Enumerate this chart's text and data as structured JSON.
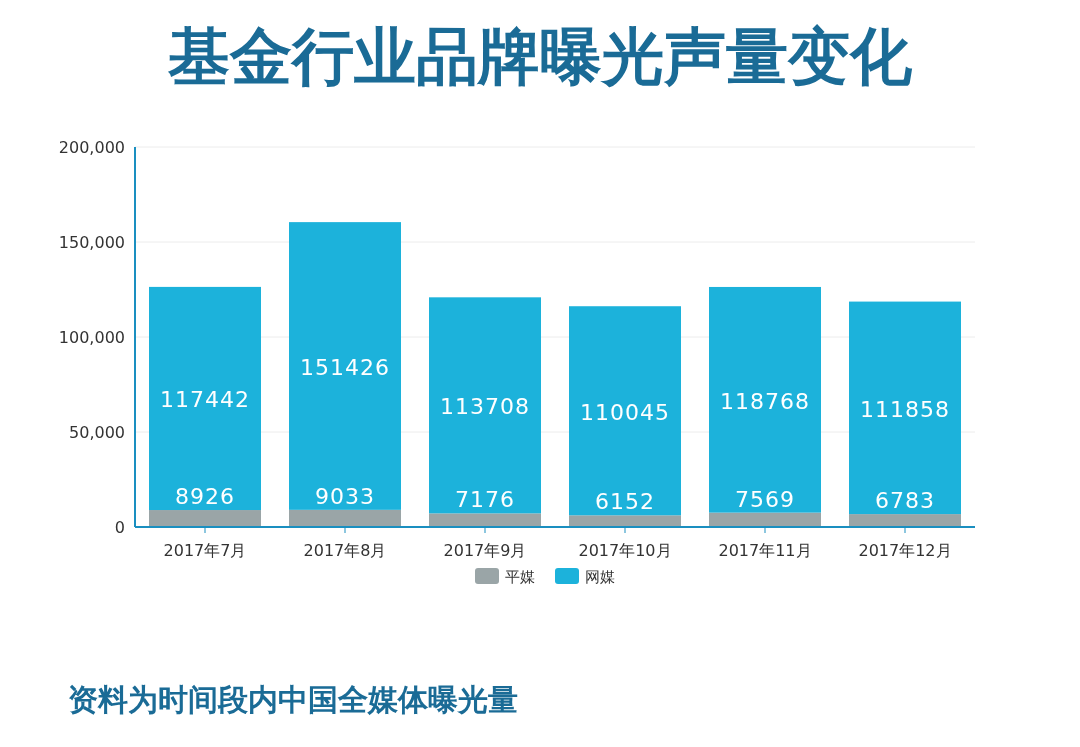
{
  "chart_data": {
    "type": "bar",
    "title": "基金行业品牌曝光声量变化",
    "stacked": true,
    "categories": [
      "2017年7月",
      "2017年8月",
      "2017年9月",
      "2017年10月",
      "2017年11月",
      "2017年12月"
    ],
    "series": [
      {
        "name": "平媒",
        "color": "#9aa5a7",
        "values": [
          8926,
          9033,
          7176,
          6152,
          7569,
          6783
        ]
      },
      {
        "name": "网媒",
        "color": "#1cb2db",
        "values": [
          117442,
          151426,
          113708,
          110045,
          118768,
          111858
        ]
      }
    ],
    "ylim": [
      0,
      200000
    ],
    "yticks": [
      0,
      {
        "value": 50000,
        "label": "50,000"
      },
      {
        "value": 100000,
        "label": "100,000"
      },
      {
        "value": 150000,
        "label": "150,000"
      },
      {
        "value": 200000,
        "label": "200,000"
      }
    ],
    "grid": "y",
    "legend": "bottom",
    "data_labels": true,
    "annotations": [
      "资料为时间段内中国全媒体曝光量"
    ]
  }
}
